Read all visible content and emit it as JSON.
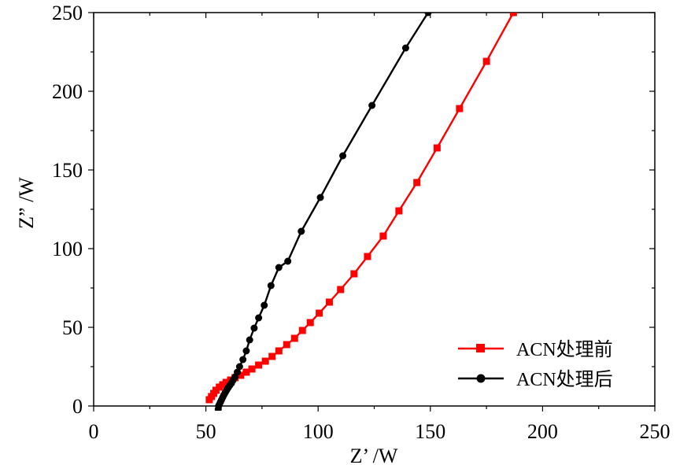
{
  "chart_data": {
    "type": "line",
    "title": "",
    "xlabel": "Z’ /W",
    "ylabel": "Z” /W",
    "xlim": [
      0,
      250
    ],
    "ylim": [
      0,
      250
    ],
    "xticks": [
      "0",
      "50",
      "100",
      "150",
      "200",
      "250"
    ],
    "yticks": [
      "0",
      "50",
      "100",
      "150",
      "200",
      "250"
    ],
    "grid": false,
    "legend_position": "bottom-right",
    "series": [
      {
        "name": "ACN处理前",
        "color": "#ff0000",
        "marker": "square",
        "points": [
          [
            51.5,
            4
          ],
          [
            52.5,
            6
          ],
          [
            53.5,
            8
          ],
          [
            54.5,
            10
          ],
          [
            56,
            12
          ],
          [
            57.5,
            13.5
          ],
          [
            59,
            15
          ],
          [
            61,
            16.5
          ],
          [
            63,
            18
          ],
          [
            65.5,
            19.5
          ],
          [
            68,
            21.5
          ],
          [
            70.5,
            23.5
          ],
          [
            73.5,
            26
          ],
          [
            76.5,
            28.5
          ],
          [
            79.5,
            31.5
          ],
          [
            82.5,
            35
          ],
          [
            86,
            39
          ],
          [
            89.5,
            43
          ],
          [
            93,
            48
          ],
          [
            96.5,
            53
          ],
          [
            100.5,
            59
          ],
          [
            105,
            66
          ],
          [
            110,
            74
          ],
          [
            116,
            84
          ],
          [
            122,
            95
          ],
          [
            129,
            108
          ],
          [
            136,
            124
          ],
          [
            144,
            142
          ],
          [
            153,
            164
          ],
          [
            163,
            189
          ],
          [
            175,
            219
          ],
          [
            187,
            250
          ]
        ]
      },
      {
        "name": "ACN处理后",
        "color": "#000000",
        "marker": "circle",
        "points": [
          [
            55.5,
            -2
          ],
          [
            55.7,
            0
          ],
          [
            56,
            1
          ],
          [
            56.5,
            2.5
          ],
          [
            57,
            4
          ],
          [
            57.5,
            5.5
          ],
          [
            58,
            7
          ],
          [
            58.6,
            8.5
          ],
          [
            59.2,
            10
          ],
          [
            59.9,
            11.5
          ],
          [
            60.6,
            13
          ],
          [
            61.4,
            14.5
          ],
          [
            62.2,
            16.5
          ],
          [
            63,
            18.5
          ],
          [
            64,
            21.5
          ],
          [
            65,
            25
          ],
          [
            66.5,
            29.5
          ],
          [
            68,
            35
          ],
          [
            69.5,
            42
          ],
          [
            71.5,
            49.5
          ],
          [
            73.5,
            56
          ],
          [
            76,
            64
          ],
          [
            79,
            76.5
          ],
          [
            82.5,
            88
          ],
          [
            86.5,
            92
          ],
          [
            92.5,
            111
          ],
          [
            101,
            132.5
          ],
          [
            111,
            159
          ],
          [
            124,
            191
          ],
          [
            139,
            227.5
          ],
          [
            149,
            250
          ]
        ]
      }
    ]
  }
}
